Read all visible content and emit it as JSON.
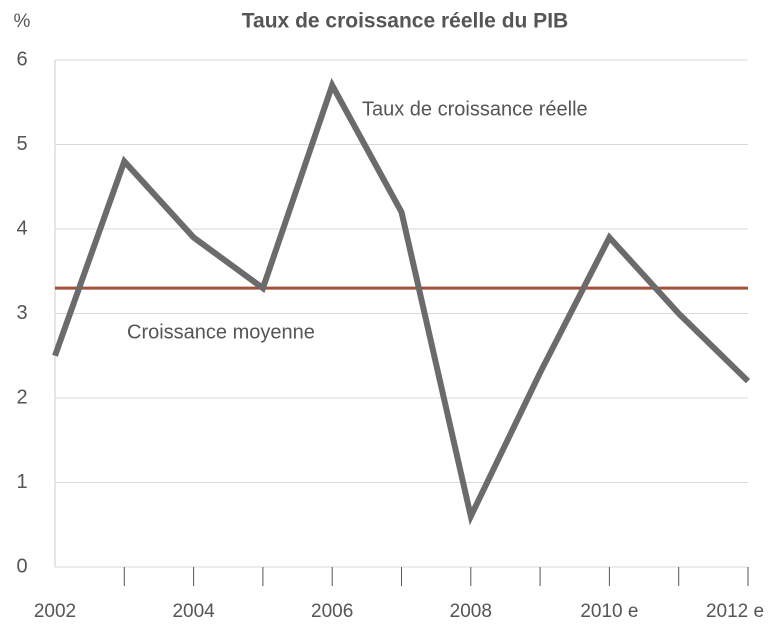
{
  "chart_data": {
    "type": "line",
    "title": "Taux de croissance réelle du PIB",
    "y_unit": "%",
    "categories": [
      "2002",
      null,
      "2004",
      null,
      "2006",
      null,
      "2008",
      null,
      "2010 e",
      null,
      "2012 e"
    ],
    "series": [
      {
        "name": "Taux de croissance réelle",
        "color": "#6d6a6b",
        "values": [
          2.5,
          4.8,
          3.9,
          3.3,
          5.7,
          4.2,
          0.6,
          2.3,
          3.9,
          3.0,
          2.2
        ]
      }
    ],
    "reference_line": {
      "label": "Croissance moyenne",
      "value": 3.3,
      "color": "#a4503b"
    },
    "ylim": [
      0,
      6
    ],
    "yticks": [
      0,
      1,
      2,
      3,
      4,
      5,
      6
    ],
    "grid": true
  }
}
